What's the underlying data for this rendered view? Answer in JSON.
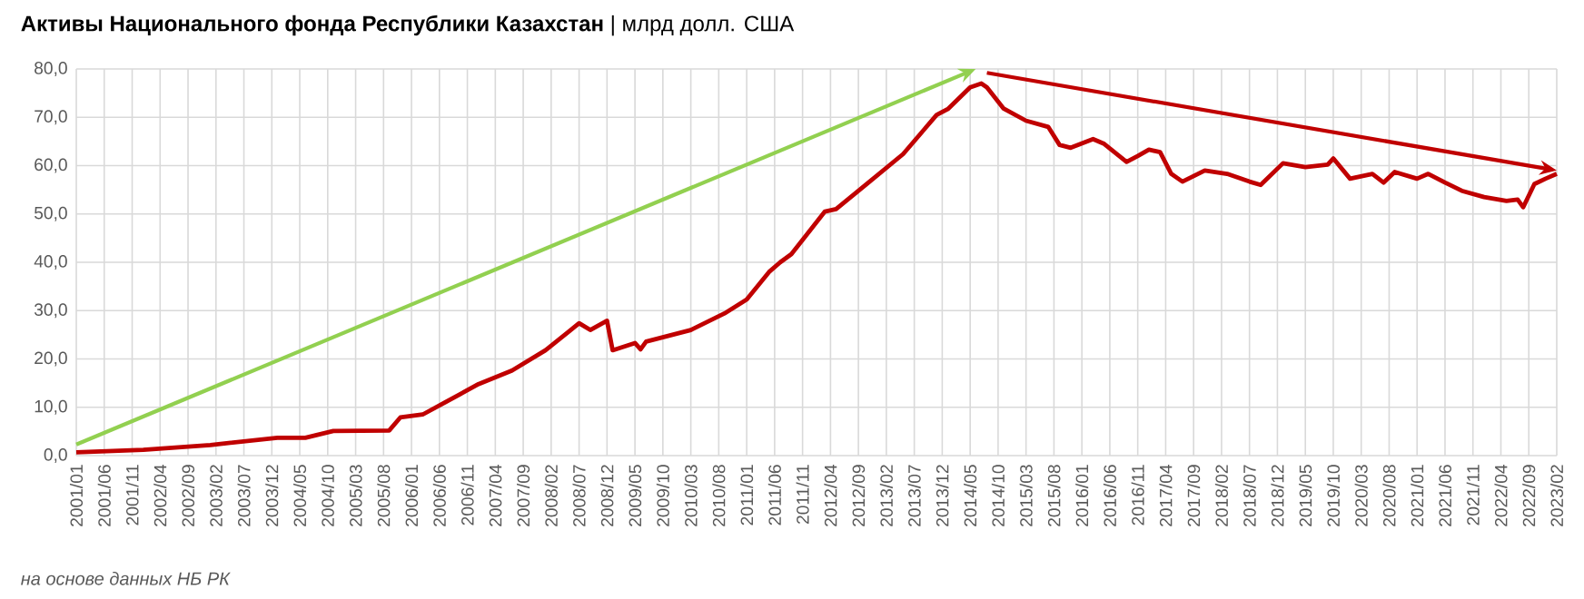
{
  "chart_data": {
    "type": "line",
    "title": "**Активы Национального фонда Республики Казахстан** | млрд долл. США",
    "annotations": [
      "на основе данных НБ РК"
    ],
    "color": "#c00000",
    "grid": true,
    "x": [
      "2001-01",
      "2002-01",
      "2003-01",
      "2004-01",
      "2004-06",
      "2004-11",
      "2005-09",
      "2005-11",
      "2006-03",
      "2006-07",
      "2007-01",
      "2007-07",
      "2008-01",
      "2008-05",
      "2008-07",
      "2008-09",
      "2008-12",
      "2009-01",
      "2009-05",
      "2009-06",
      "2009-07",
      "2010-03",
      "2010-09",
      "2011-01",
      "2011-05",
      "2011-07",
      "2011-09",
      "2012-03",
      "2012-05",
      "2012-11",
      "2013-05",
      "2013-11",
      "2014-01",
      "2014-05",
      "2014-07",
      "2014-08",
      "2014-11",
      "2015-03",
      "2015-07",
      "2015-09",
      "2015-11",
      "2016-03",
      "2016-05",
      "2016-09",
      "2016-11",
      "2017-01",
      "2017-03",
      "2017-05",
      "2017-07",
      "2017-11",
      "2018-03",
      "2018-07",
      "2018-09",
      "2019-01",
      "2019-05",
      "2019-09",
      "2019-10",
      "2020-01",
      "2020-05",
      "2020-07",
      "2020-09",
      "2021-01",
      "2021-03",
      "2021-06",
      "2021-09",
      "2022-01",
      "2022-05",
      "2022-07",
      "2022-08",
      "2022-10",
      "2022-12",
      "2023-02"
    ],
    "values": [
      0.7,
      1.2,
      2.2,
      3.7,
      3.7,
      5.1,
      5.2,
      7.9,
      8.5,
      11,
      14.8,
      17.6,
      21.8,
      25.5,
      27.4,
      26,
      27.9,
      21.8,
      23.3,
      22,
      23.6,
      26,
      29.4,
      32.3,
      38,
      40,
      41.7,
      50.5,
      51,
      56.7,
      62.4,
      70.5,
      71.7,
      76.2,
      77,
      76.2,
      71.8,
      69.3,
      68,
      64.3,
      63.7,
      65.5,
      64.5,
      60.8,
      62,
      63.3,
      62.8,
      58.3,
      56.7,
      59,
      58.3,
      56.7,
      56,
      60.5,
      59.7,
      60.2,
      61.5,
      57.3,
      58.3,
      56.5,
      58.7,
      57.3,
      58.3,
      56.5,
      54.8,
      53.5,
      52.7,
      53,
      51.4,
      56.2,
      57.3,
      58.3
    ],
    "xlim": [
      "2001-01",
      "2023-02"
    ],
    "ylim": [
      0,
      80
    ],
    "yticks": [
      {
        "value": 0,
        "label": "0,0"
      },
      {
        "value": 10,
        "label": "10,0"
      },
      {
        "value": 20,
        "label": "20,0"
      },
      {
        "value": 30,
        "label": "30,0"
      },
      {
        "value": 40,
        "label": "40,0"
      },
      {
        "value": 50,
        "label": "50,0"
      },
      {
        "value": 60,
        "label": "60,0"
      },
      {
        "value": 70,
        "label": "70,0"
      },
      {
        "value": 80,
        "label": "80,0"
      }
    ],
    "xticks": [
      {
        "value": "2001-01",
        "label": "2001/01"
      },
      {
        "value": "2001-06",
        "label": "2001/06"
      },
      {
        "value": "2001-11",
        "label": "2001/11"
      },
      {
        "value": "2002-04",
        "label": "2002/04"
      },
      {
        "value": "2002-09",
        "label": "2002/09"
      },
      {
        "value": "2003-02",
        "label": "2003/02"
      },
      {
        "value": "2003-07",
        "label": "2003/07"
      },
      {
        "value": "2003-12",
        "label": "2003/12"
      },
      {
        "value": "2004-05",
        "label": "2004/05"
      },
      {
        "value": "2004-10",
        "label": "2004/10"
      },
      {
        "value": "2005-03",
        "label": "2005/03"
      },
      {
        "value": "2005-08",
        "label": "2005/08"
      },
      {
        "value": "2006-01",
        "label": "2006/01"
      },
      {
        "value": "2006-06",
        "label": "2006/06"
      },
      {
        "value": "2006-11",
        "label": "2006/11"
      },
      {
        "value": "2007-04",
        "label": "2007/04"
      },
      {
        "value": "2007-09",
        "label": "2007/09"
      },
      {
        "value": "2008-02",
        "label": "2008/02"
      },
      {
        "value": "2008-07",
        "label": "2008/07"
      },
      {
        "value": "2008-12",
        "label": "2008/12"
      },
      {
        "value": "2009-05",
        "label": "2009/05"
      },
      {
        "value": "2009-10",
        "label": "2009/10"
      },
      {
        "value": "2010-03",
        "label": "2010/03"
      },
      {
        "value": "2010-08",
        "label": "2010/08"
      },
      {
        "value": "2011-01",
        "label": "2011/01"
      },
      {
        "value": "2011-06",
        "label": "2011/06"
      },
      {
        "value": "2011-11",
        "label": "2011/11"
      },
      {
        "value": "2012-04",
        "label": "2012/04"
      },
      {
        "value": "2012-09",
        "label": "2012/09"
      },
      {
        "value": "2013-02",
        "label": "2013/02"
      },
      {
        "value": "2013-07",
        "label": "2013/07"
      },
      {
        "value": "2013-12",
        "label": "2013/12"
      },
      {
        "value": "2014-05",
        "label": "2014/05"
      },
      {
        "value": "2014-10",
        "label": "2014/10"
      },
      {
        "value": "2015-03",
        "label": "2015/03"
      },
      {
        "value": "2015-08",
        "label": "2015/08"
      },
      {
        "value": "2016-01",
        "label": "2016/01"
      },
      {
        "value": "2016-06",
        "label": "2016/06"
      },
      {
        "value": "2016-11",
        "label": "2016/11"
      },
      {
        "value": "2017-04",
        "label": "2017/04"
      },
      {
        "value": "2017-09",
        "label": "2017/09"
      },
      {
        "value": "2018-02",
        "label": "2018/02"
      },
      {
        "value": "2018-07",
        "label": "2018/07"
      },
      {
        "value": "2018-12",
        "label": "2018/12"
      },
      {
        "value": "2019-05",
        "label": "2019/05"
      },
      {
        "value": "2019-10",
        "label": "2019/10"
      },
      {
        "value": "2020-03",
        "label": "2020/03"
      },
      {
        "value": "2020-08",
        "label": "2020/08"
      },
      {
        "value": "2021-01",
        "label": "2021/01"
      },
      {
        "value": "2021-06",
        "label": "2021/06"
      },
      {
        "value": "2021-11",
        "label": "2021/11"
      },
      {
        "value": "2022-04",
        "label": "2022/04"
      },
      {
        "value": "2022-09",
        "label": "2022/09"
      },
      {
        "value": "2023-02",
        "label": "2023/02"
      }
    ]
  }
}
